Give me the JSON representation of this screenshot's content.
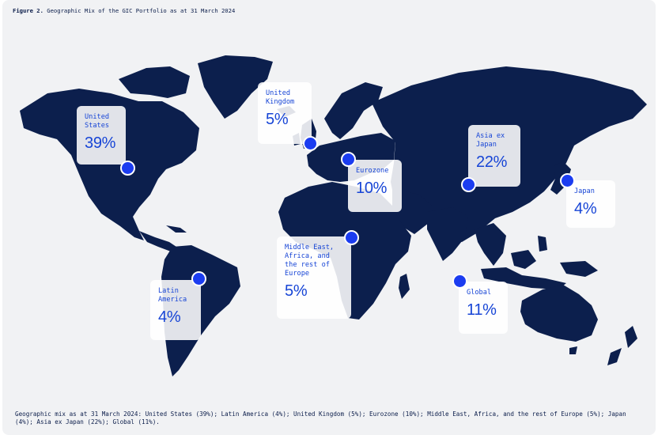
{
  "figure": {
    "label": "Figure 2.",
    "title": "Geographic Mix of the GIC Portfolio as at 31 March 2024"
  },
  "regions": [
    {
      "id": "united-states",
      "label": "United\nStates",
      "value": "39%"
    },
    {
      "id": "united-kingdom",
      "label": "United\nKingdom",
      "value": "5%"
    },
    {
      "id": "eurozone",
      "label": "Eurozone",
      "value": "10%"
    },
    {
      "id": "asia-ex-japan",
      "label": "Asia ex\nJapan",
      "value": "22%"
    },
    {
      "id": "japan",
      "label": "Japan",
      "value": "4%"
    },
    {
      "id": "latin-america",
      "label": "Latin\nAmerica",
      "value": "4%"
    },
    {
      "id": "middle-east-africa",
      "label": "Middle East,\nAfrica, and\nthe rest of\nEurope",
      "value": "5%"
    },
    {
      "id": "global",
      "label": "Global",
      "value": "11%"
    }
  ],
  "caption": "Geographic mix as at 31 March 2024: United States (39%); Latin America (4%); United Kingdom (5%); Eurozone (10%); Middle East, Africa, and the rest of Europe (5%); Japan (4%); Asia ex Japan (22%); Global (11%).",
  "colors": {
    "land": "#0c1f4d",
    "marker": "#1b3cf0",
    "accent_text": "#1745d6",
    "background": "#f1f2f4"
  }
}
